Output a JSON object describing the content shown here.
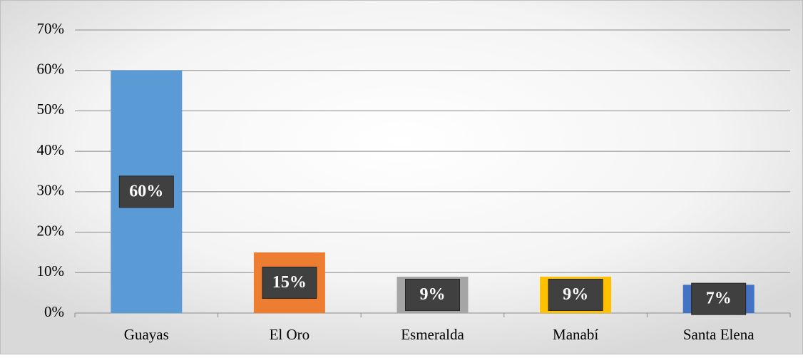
{
  "chart_data": {
    "type": "bar",
    "categories": [
      "Guayas",
      "El Oro",
      "Esmeralda",
      "Manabí",
      "Santa Elena"
    ],
    "values": [
      60,
      15,
      9,
      9,
      7
    ],
    "value_labels": [
      "60%",
      "15%",
      "9%",
      "9%",
      "7%"
    ],
    "colors": [
      "#5b9bd5",
      "#ed7d31",
      "#a5a5a5",
      "#ffc000",
      "#4472c4"
    ],
    "ylim": [
      0,
      70
    ],
    "yticks": [
      {
        "value": 0,
        "label": "0%"
      },
      {
        "value": 10,
        "label": "10%"
      },
      {
        "value": 20,
        "label": "20%"
      },
      {
        "value": 30,
        "label": "30%"
      },
      {
        "value": 40,
        "label": "40%"
      },
      {
        "value": 50,
        "label": "50%"
      },
      {
        "value": 60,
        "label": "60%"
      },
      {
        "value": 70,
        "label": "70%"
      }
    ],
    "grid": true
  }
}
